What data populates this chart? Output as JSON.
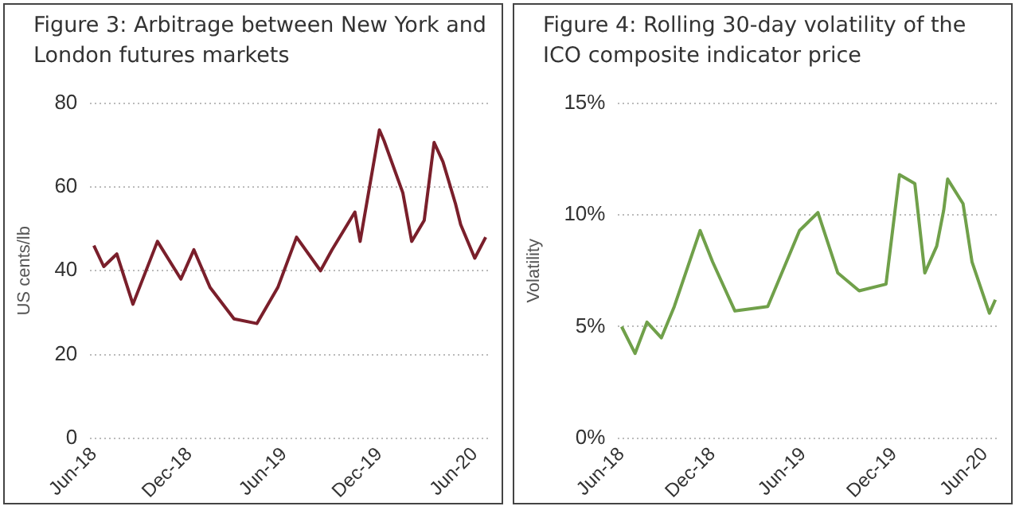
{
  "chart_data": [
    {
      "type": "line",
      "title": "Figure 3:  Arbitrage between New York and London futures markets",
      "ylabel": "US cents/lb",
      "grid": "y",
      "line_style": "solid",
      "marker": "none",
      "x": [
        "2018-06-01",
        "2018-06-20",
        "2018-07-15",
        "2018-08-15",
        "2018-10-01",
        "2018-11-15",
        "2018-12-10",
        "2019-01-10",
        "2019-02-25",
        "2019-04-10",
        "2019-05-20",
        "2019-06-25",
        "2019-08-10",
        "2019-09-01",
        "2019-10-15",
        "2019-10-25",
        "2019-12-01",
        "2019-12-10",
        "2020-01-15",
        "2020-02-01",
        "2020-02-25",
        "2020-03-15",
        "2020-04-01",
        "2020-04-25",
        "2020-05-05",
        "2020-06-01",
        "2020-06-22"
      ],
      "series": [
        {
          "color": "#7a1f2b",
          "values": [
            46,
            41,
            44,
            32,
            47,
            38,
            45,
            36,
            28.5,
            27.4,
            36,
            48,
            40,
            45,
            54,
            47,
            73.6,
            71,
            58.6,
            47,
            52,
            70.6,
            66,
            56,
            51,
            43,
            48
          ]
        }
      ],
      "xlim": [
        "2018-05-25",
        "2020-06-28"
      ],
      "xticks": [
        {
          "value": "2018-06-01",
          "label": "Jun-18"
        },
        {
          "value": "2018-12-01",
          "label": "Dec-18"
        },
        {
          "value": "2019-06-01",
          "label": "Jun-19"
        },
        {
          "value": "2019-12-01",
          "label": "Dec-19"
        },
        {
          "value": "2020-06-01",
          "label": "Jun-20"
        }
      ],
      "ylim": [
        0,
        80
      ],
      "yticks": [
        0,
        20,
        40,
        60,
        80
      ]
    },
    {
      "type": "line",
      "title": "Figure 4:  Rolling 30-day volatility of the ICO  composite indicator price",
      "ylabel": "Volatility",
      "grid": "y",
      "line_style": "solid",
      "marker": "none",
      "x": [
        "2018-06-01",
        "2018-06-28",
        "2018-07-22",
        "2018-08-20",
        "2018-09-15",
        "2018-11-06",
        "2018-12-01",
        "2019-01-15",
        "2019-03-22",
        "2019-05-25",
        "2019-07-01",
        "2019-08-10",
        "2019-09-22",
        "2019-11-15",
        "2019-12-12",
        "2020-01-12",
        "2020-02-01",
        "2020-02-25",
        "2020-03-10",
        "2020-03-18",
        "2020-04-18",
        "2020-05-06",
        "2020-06-10",
        "2020-06-22"
      ],
      "series": [
        {
          "color": "#70a04a",
          "values": [
            5.0,
            3.8,
            5.2,
            4.5,
            5.9,
            9.3,
            7.9,
            5.7,
            5.9,
            9.3,
            10.1,
            7.4,
            6.6,
            6.9,
            11.8,
            11.4,
            7.4,
            8.6,
            10.2,
            11.6,
            10.5,
            7.9,
            5.6,
            6.2
          ]
        }
      ],
      "xlim": [
        "2018-05-25",
        "2020-06-28"
      ],
      "xticks": [
        {
          "value": "2018-06-01",
          "label": "Jun-18"
        },
        {
          "value": "2018-12-01",
          "label": "Dec-18"
        },
        {
          "value": "2019-06-01",
          "label": "Jun-19"
        },
        {
          "value": "2019-12-01",
          "label": "Dec-19"
        },
        {
          "value": "2020-06-01",
          "label": "Jun-20"
        }
      ],
      "ylim": [
        0,
        15
      ],
      "yticks": [
        {
          "value": 0,
          "label": "0%"
        },
        {
          "value": 5,
          "label": "5%"
        },
        {
          "value": 10,
          "label": "10%"
        },
        {
          "value": 15,
          "label": "15%"
        }
      ]
    }
  ]
}
